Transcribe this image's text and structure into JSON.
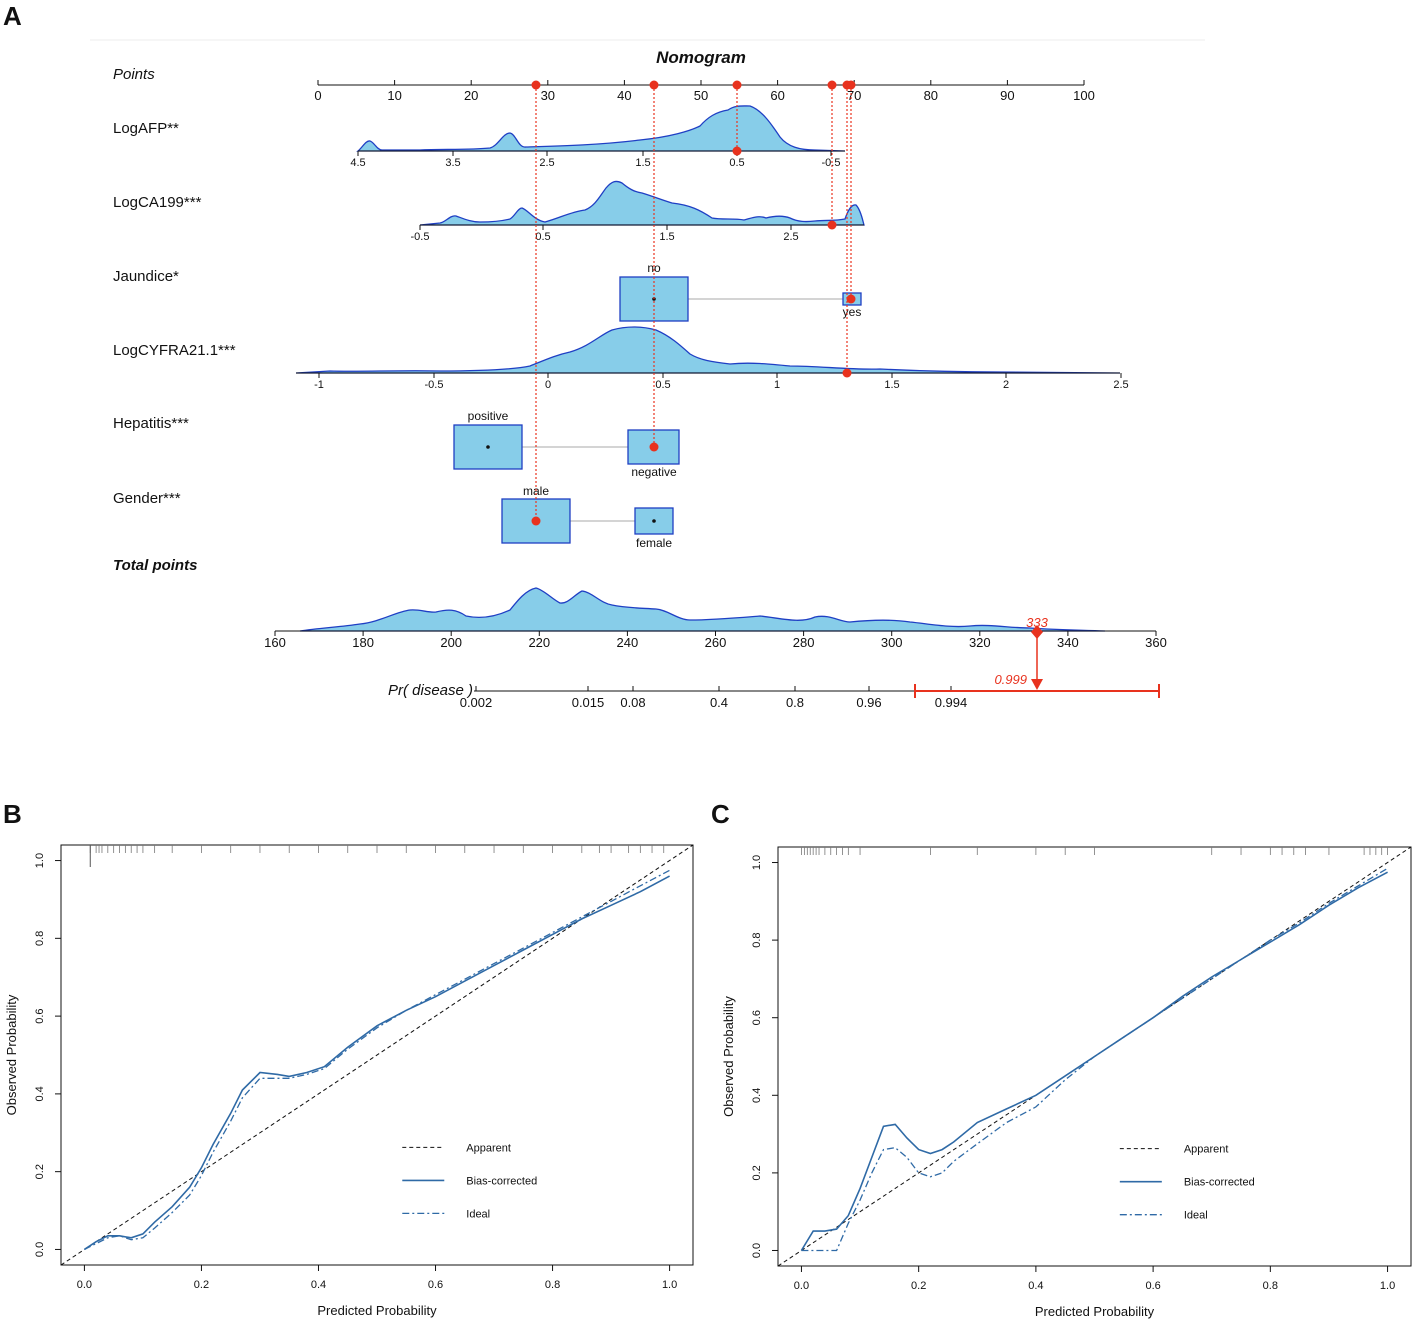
{
  "panels": {
    "A": {
      "letter": "A"
    },
    "B": {
      "letter": "B"
    },
    "C": {
      "letter": "C"
    }
  },
  "nomogram": {
    "title": "Nomogram",
    "points_label": "Points",
    "points_ticks": [
      "0",
      "10",
      "20",
      "30",
      "40",
      "50",
      "60",
      "70",
      "80",
      "90",
      "100"
    ],
    "variables": {
      "logafp": {
        "label": "LogAFP**",
        "ticks": [
          "4.5",
          "3.5",
          "2.5",
          "1.5",
          "0.5",
          "-0.5"
        ]
      },
      "logca199": {
        "label": "LogCA199***",
        "ticks": [
          "-0.5",
          "0.5",
          "1.5",
          "2.5"
        ]
      },
      "jaundice": {
        "label": "Jaundice*",
        "categories": [
          "no",
          "yes"
        ]
      },
      "logcyfra": {
        "label": "LogCYFRA21.1***",
        "ticks": [
          "-1",
          "-0.5",
          "0",
          "0.5",
          "1",
          "1.5",
          "2",
          "2.5"
        ]
      },
      "hepatitis": {
        "label": "Hepatitis***",
        "categories": [
          "positive",
          "negative"
        ]
      },
      "gender": {
        "label": "Gender***",
        "categories": [
          "male",
          "female"
        ]
      }
    },
    "total_points_label": "Total points",
    "total_ticks": [
      "160",
      "180",
      "200",
      "220",
      "240",
      "260",
      "280",
      "300",
      "320",
      "340",
      "360"
    ],
    "total_value": "333",
    "prob_label": "Pr( disease )",
    "prob_ticks": [
      "0.002",
      "0.015",
      "0.08",
      "0.4",
      "0.8",
      "0.96",
      "0.994"
    ],
    "prob_value": "0.999",
    "accent_color": "#e8321e",
    "fill_color": "#87cde9",
    "outline_color": "#1f3fc4"
  },
  "chart_data": [
    {
      "panel": "B",
      "type": "line",
      "xlabel": "Predicted Probability",
      "ylabel": "Observed Probability",
      "xlim": [
        -0.04,
        1.04
      ],
      "ylim": [
        -0.04,
        1.04
      ],
      "xticks": [
        "0.0",
        "0.2",
        "0.4",
        "0.6",
        "0.8",
        "1.0"
      ],
      "yticks": [
        "0.0",
        "0.2",
        "0.4",
        "0.6",
        "0.8",
        "1.0"
      ],
      "legend": [
        "Apparent",
        "Bias-corrected",
        "Ideal"
      ],
      "series": [
        {
          "name": "Apparent",
          "style": "dashed-black",
          "x": [
            -0.04,
            1.04
          ],
          "y": [
            -0.04,
            1.04
          ]
        },
        {
          "name": "Bias-corrected",
          "style": "solid-blue",
          "x": [
            0.0,
            0.02,
            0.04,
            0.06,
            0.08,
            0.1,
            0.12,
            0.15,
            0.18,
            0.2,
            0.22,
            0.25,
            0.27,
            0.3,
            0.33,
            0.35,
            0.38,
            0.41,
            0.45,
            0.5,
            0.55,
            0.6,
            0.65,
            0.7,
            0.75,
            0.8,
            0.85,
            0.9,
            0.95,
            1.0
          ],
          "y": [
            0.0,
            0.02,
            0.035,
            0.035,
            0.03,
            0.04,
            0.07,
            0.11,
            0.16,
            0.21,
            0.27,
            0.35,
            0.41,
            0.455,
            0.45,
            0.445,
            0.455,
            0.47,
            0.52,
            0.575,
            0.615,
            0.65,
            0.69,
            0.73,
            0.77,
            0.81,
            0.85,
            0.885,
            0.92,
            0.96
          ]
        },
        {
          "name": "Ideal",
          "style": "dashed-blue",
          "x": [
            0.0,
            0.02,
            0.04,
            0.06,
            0.08,
            0.1,
            0.12,
            0.15,
            0.18,
            0.2,
            0.22,
            0.25,
            0.27,
            0.3,
            0.33,
            0.35,
            0.38,
            0.41,
            0.45,
            0.5,
            0.55,
            0.6,
            0.65,
            0.7,
            0.75,
            0.8,
            0.85,
            0.9,
            0.95,
            1.0
          ],
          "y": [
            0.0,
            0.015,
            0.03,
            0.035,
            0.025,
            0.03,
            0.055,
            0.095,
            0.14,
            0.19,
            0.25,
            0.33,
            0.39,
            0.44,
            0.44,
            0.44,
            0.45,
            0.465,
            0.515,
            0.57,
            0.615,
            0.655,
            0.695,
            0.735,
            0.775,
            0.815,
            0.855,
            0.895,
            0.935,
            0.975
          ]
        }
      ],
      "rug_top": [
        0.01,
        0.02,
        0.025,
        0.03,
        0.04,
        0.05,
        0.06,
        0.07,
        0.08,
        0.09,
        0.1,
        0.12,
        0.15,
        0.2,
        0.25,
        0.3,
        0.35,
        0.4,
        0.45,
        0.5,
        0.55,
        0.6,
        0.65,
        0.7,
        0.75,
        0.8,
        0.85,
        0.88,
        0.9,
        0.93,
        0.95,
        0.97,
        0.99
      ]
    },
    {
      "panel": "C",
      "type": "line",
      "xlabel": "Predicted Probability",
      "ylabel": "Observed Probability",
      "xlim": [
        -0.04,
        1.04
      ],
      "ylim": [
        -0.04,
        1.04
      ],
      "xticks": [
        "0.0",
        "0.2",
        "0.4",
        "0.6",
        "0.8",
        "1.0"
      ],
      "yticks": [
        "0.0",
        "0.2",
        "0.4",
        "0.6",
        "0.8",
        "1.0"
      ],
      "legend": [
        "Apparent",
        "Bias-corrected",
        "Ideal"
      ],
      "series": [
        {
          "name": "Apparent",
          "style": "dashed-black",
          "x": [
            -0.04,
            1.04
          ],
          "y": [
            -0.04,
            1.04
          ]
        },
        {
          "name": "Bias-corrected",
          "style": "solid-blue",
          "x": [
            0.0,
            0.02,
            0.04,
            0.06,
            0.08,
            0.1,
            0.12,
            0.14,
            0.16,
            0.18,
            0.2,
            0.22,
            0.24,
            0.26,
            0.3,
            0.35,
            0.4,
            0.45,
            0.5,
            0.55,
            0.6,
            0.65,
            0.7,
            0.75,
            0.8,
            0.85,
            0.9,
            0.95,
            1.0
          ],
          "y": [
            0.0,
            0.05,
            0.05,
            0.055,
            0.09,
            0.16,
            0.24,
            0.32,
            0.325,
            0.29,
            0.26,
            0.25,
            0.26,
            0.28,
            0.33,
            0.365,
            0.4,
            0.45,
            0.5,
            0.55,
            0.6,
            0.655,
            0.705,
            0.75,
            0.795,
            0.84,
            0.89,
            0.935,
            0.975
          ]
        },
        {
          "name": "Ideal",
          "style": "dashed-blue",
          "x": [
            0.0,
            0.02,
            0.04,
            0.06,
            0.08,
            0.1,
            0.12,
            0.14,
            0.16,
            0.18,
            0.2,
            0.22,
            0.24,
            0.26,
            0.3,
            0.35,
            0.4,
            0.45,
            0.5,
            0.55,
            0.6,
            0.65,
            0.7,
            0.75,
            0.8,
            0.85,
            0.9,
            0.95,
            1.0
          ],
          "y": [
            0.0,
            0.0,
            0.0,
            0.0,
            0.07,
            0.13,
            0.2,
            0.26,
            0.265,
            0.24,
            0.2,
            0.19,
            0.2,
            0.23,
            0.275,
            0.33,
            0.37,
            0.44,
            0.5,
            0.55,
            0.6,
            0.65,
            0.7,
            0.75,
            0.8,
            0.845,
            0.895,
            0.94,
            0.985
          ]
        }
      ],
      "rug_top": [
        0.0,
        0.005,
        0.01,
        0.015,
        0.02,
        0.025,
        0.03,
        0.04,
        0.05,
        0.06,
        0.07,
        0.08,
        0.1,
        0.22,
        0.3,
        0.4,
        0.45,
        0.5,
        0.7,
        0.75,
        0.8,
        0.82,
        0.84,
        0.86,
        0.9,
        0.96,
        0.97,
        0.98,
        0.99,
        1.0
      ]
    }
  ]
}
